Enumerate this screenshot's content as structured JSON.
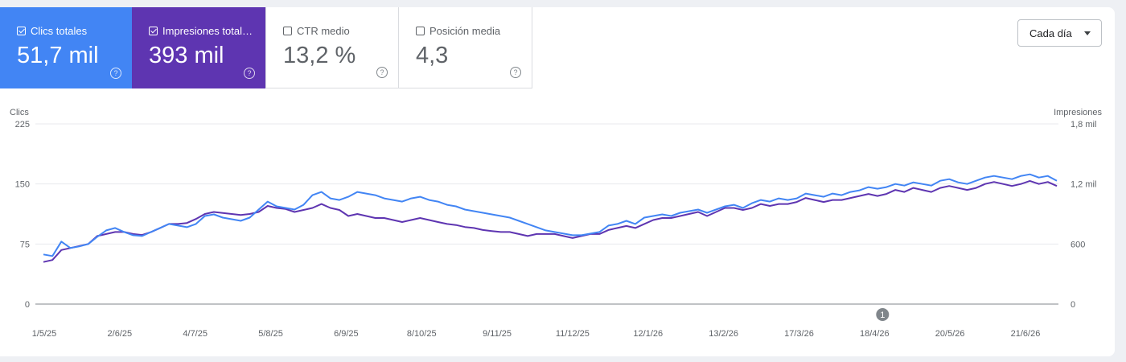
{
  "metrics": {
    "clicks": {
      "label": "Clics totales",
      "value": "51,7 mil",
      "checked": true
    },
    "impressions": {
      "label": "Impresiones total…",
      "value": "393 mil",
      "checked": true
    },
    "ctr": {
      "label": "CTR medio",
      "value": "13,2 %",
      "checked": false
    },
    "position": {
      "label": "Posición media",
      "value": "4,3",
      "checked": false
    }
  },
  "dropdown": {
    "label": "Cada día"
  },
  "help_glyph": "?",
  "colors": {
    "clicks": "#4285f4",
    "impressions": "#5e35b1",
    "grid": "#e8eaed"
  },
  "chart_data": {
    "type": "line",
    "left_axis": {
      "title": "Clics",
      "ticks": [
        "0",
        "75",
        "150",
        "225"
      ],
      "range": [
        0,
        225
      ]
    },
    "right_axis": {
      "title": "Impresiones",
      "ticks": [
        "0",
        "600",
        "1,2 mil",
        "1,8 mil"
      ],
      "range": [
        0,
        1800
      ]
    },
    "x_labels": [
      "1/5/25",
      "2/6/25",
      "4/7/25",
      "5/8/25",
      "6/9/25",
      "8/10/25",
      "9/11/25",
      "11/12/25",
      "12/1/26",
      "13/2/26",
      "17/3/26",
      "18/4/26",
      "20/5/26",
      "21/6/26"
    ],
    "annotation": {
      "label": "1",
      "date": "18/4/26"
    },
    "series": [
      {
        "name": "Clics",
        "axis": "left",
        "values": [
          62,
          60,
          78,
          70,
          72,
          75,
          84,
          92,
          95,
          90,
          86,
          85,
          90,
          95,
          100,
          98,
          96,
          100,
          110,
          112,
          108,
          106,
          104,
          108,
          118,
          128,
          122,
          120,
          118,
          124,
          136,
          140,
          132,
          130,
          134,
          140,
          138,
          136,
          132,
          130,
          128,
          132,
          134,
          130,
          128,
          124,
          122,
          118,
          116,
          114,
          112,
          110,
          108,
          104,
          100,
          96,
          92,
          90,
          88,
          86,
          86,
          88,
          90,
          98,
          100,
          104,
          100,
          108,
          110,
          112,
          110,
          114,
          116,
          118,
          114,
          118,
          122,
          124,
          120,
          126,
          130,
          128,
          132,
          130,
          132,
          138,
          136,
          134,
          138,
          136,
          140,
          142,
          146,
          144,
          146,
          150,
          148,
          152,
          150,
          148,
          154,
          156,
          152,
          150,
          154,
          158,
          160,
          158,
          156,
          160,
          162,
          158,
          160,
          154
        ]
      },
      {
        "name": "Impresiones",
        "axis": "right",
        "values": [
          420,
          440,
          540,
          560,
          580,
          600,
          680,
          700,
          720,
          720,
          700,
          690,
          720,
          760,
          800,
          800,
          810,
          850,
          900,
          920,
          910,
          900,
          890,
          900,
          920,
          980,
          960,
          950,
          920,
          940,
          960,
          1000,
          960,
          940,
          880,
          900,
          880,
          860,
          860,
          840,
          820,
          840,
          860,
          840,
          820,
          800,
          790,
          770,
          760,
          740,
          730,
          720,
          720,
          700,
          680,
          700,
          700,
          700,
          680,
          660,
          680,
          700,
          700,
          740,
          760,
          780,
          760,
          800,
          840,
          860,
          860,
          880,
          900,
          920,
          880,
          920,
          960,
          960,
          940,
          960,
          1000,
          980,
          1000,
          1000,
          1020,
          1060,
          1040,
          1020,
          1040,
          1040,
          1060,
          1080,
          1100,
          1080,
          1100,
          1140,
          1120,
          1160,
          1140,
          1120,
          1160,
          1180,
          1160,
          1140,
          1160,
          1200,
          1220,
          1200,
          1180,
          1200,
          1230,
          1200,
          1220,
          1180
        ]
      }
    ]
  }
}
